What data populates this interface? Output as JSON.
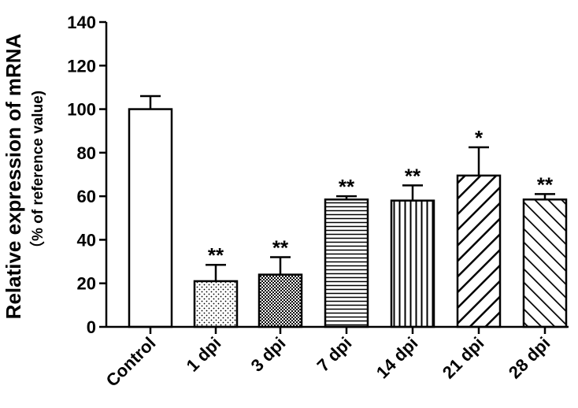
{
  "chart_data": {
    "type": "bar",
    "title": "",
    "ylabel": "Relative expression of mRNA",
    "ylabel_sub": "（% of reference value)",
    "xlabel": "",
    "ylim": [
      0,
      140
    ],
    "yticks": [
      0,
      20,
      40,
      60,
      80,
      100,
      120,
      140
    ],
    "categories": [
      "Control",
      "1 dpi",
      "3 dpi",
      "7 dpi",
      "14 dpi",
      "21 dpi",
      "28 dpi"
    ],
    "series": [
      {
        "values": [
          100,
          21,
          24,
          58.5,
          58,
          69.5,
          58.5
        ],
        "error": [
          6,
          7.5,
          8,
          1.5,
          7,
          13,
          2.5
        ],
        "significance": [
          "",
          "**",
          "**",
          "**",
          "**",
          "*",
          "**"
        ],
        "patterns": [
          "none",
          "dots",
          "checker",
          "horizontal-lines",
          "vertical-lines",
          "diagonal-wide",
          "diagonal-reverse"
        ]
      }
    ],
    "grid": false,
    "legend": "none",
    "colors": {
      "stroke": "#000000",
      "fill": "#ffffff"
    }
  }
}
